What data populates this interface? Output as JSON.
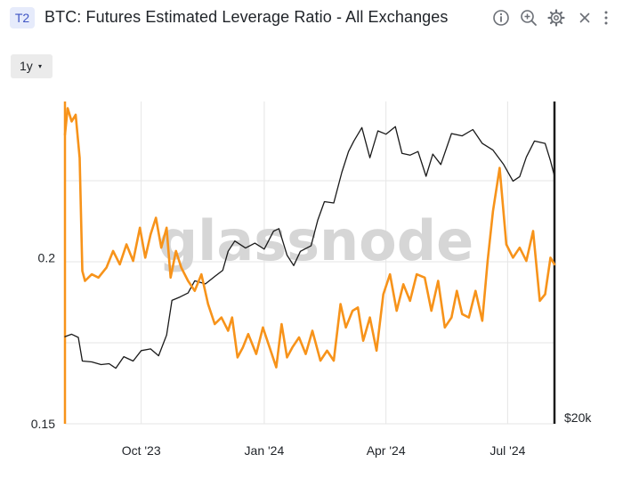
{
  "header": {
    "badge": "T2",
    "title": "BTC: Futures Estimated Leverage Ratio - All Exchanges",
    "icons": [
      "info-icon",
      "zoom-in-icon",
      "gear-icon",
      "close-icon",
      "more-vertical-icon"
    ]
  },
  "controls": {
    "range_label": "1y",
    "range_caret": "▾"
  },
  "watermark": "glassnode",
  "colors": {
    "leverage": "#f7931a",
    "price": "#1a1a1a",
    "grid": "#e6e6e6",
    "axis": "#1a1a1a",
    "badge_bg": "#e6ebfb",
    "badge_text": "#3f55c4"
  },
  "chart_data": {
    "type": "line",
    "x_tick_labels": [
      "Oct '23",
      "Jan '24",
      "Apr '24",
      "Jul '24"
    ],
    "x_ticks": [
      "2023-10-01",
      "2024-01-01",
      "2024-04-01",
      "2024-07-01"
    ],
    "xlim": [
      "2023-08-05",
      "2024-08-05"
    ],
    "y_left": {
      "ticks": [
        0.15,
        0.2
      ],
      "tick_labels": [
        "0.15",
        "0.2"
      ],
      "ylim": [
        0.15,
        0.247
      ]
    },
    "y_right": {
      "ticks": [
        20000
      ],
      "tick_labels": [
        "$20k"
      ],
      "scale": "log",
      "ylim": [
        20000,
        80000
      ]
    },
    "grid": true,
    "series": [
      {
        "key": "leverage",
        "axis": "left",
        "x": [
          "2023-08-05",
          "2023-08-07",
          "2023-08-10",
          "2023-08-13",
          "2023-08-16",
          "2023-08-18",
          "2023-08-20",
          "2023-08-25",
          "2023-08-30",
          "2023-09-05",
          "2023-09-10",
          "2023-09-15",
          "2023-09-20",
          "2023-09-25",
          "2023-09-30",
          "2023-10-04",
          "2023-10-08",
          "2023-10-12",
          "2023-10-16",
          "2023-10-20",
          "2023-10-23",
          "2023-10-27",
          "2023-10-31",
          "2023-11-05",
          "2023-11-10",
          "2023-11-15",
          "2023-11-20",
          "2023-11-25",
          "2023-11-30",
          "2023-12-05",
          "2023-12-08",
          "2023-12-12",
          "2023-12-16",
          "2023-12-20",
          "2023-12-26",
          "2023-12-31",
          "2024-01-05",
          "2024-01-10",
          "2024-01-14",
          "2024-01-18",
          "2024-01-22",
          "2024-01-27",
          "2024-02-01",
          "2024-02-06",
          "2024-02-12",
          "2024-02-17",
          "2024-02-22",
          "2024-02-27",
          "2024-03-02",
          "2024-03-07",
          "2024-03-11",
          "2024-03-15",
          "2024-03-20",
          "2024-03-25",
          "2024-03-30",
          "2024-04-04",
          "2024-04-09",
          "2024-04-14",
          "2024-04-19",
          "2024-04-24",
          "2024-04-30",
          "2024-05-05",
          "2024-05-10",
          "2024-05-15",
          "2024-05-20",
          "2024-05-24",
          "2024-05-28",
          "2024-06-02",
          "2024-06-07",
          "2024-06-12",
          "2024-06-16",
          "2024-06-20",
          "2024-06-25",
          "2024-06-30",
          "2024-07-05",
          "2024-07-10",
          "2024-07-15",
          "2024-07-20",
          "2024-07-25",
          "2024-07-29",
          "2024-08-02",
          "2024-08-05"
        ],
        "values": [
          0.237,
          0.245,
          0.241,
          0.243,
          0.23,
          0.196,
          0.193,
          0.195,
          0.194,
          0.197,
          0.202,
          0.198,
          0.204,
          0.199,
          0.209,
          0.2,
          0.207,
          0.212,
          0.203,
          0.209,
          0.194,
          0.202,
          0.197,
          0.193,
          0.19,
          0.195,
          0.186,
          0.18,
          0.182,
          0.178,
          0.182,
          0.17,
          0.173,
          0.177,
          0.171,
          0.179,
          0.173,
          0.167,
          0.18,
          0.17,
          0.173,
          0.176,
          0.171,
          0.178,
          0.169,
          0.172,
          0.169,
          0.186,
          0.179,
          0.184,
          0.185,
          0.175,
          0.182,
          0.172,
          0.189,
          0.195,
          0.184,
          0.192,
          0.187,
          0.195,
          0.194,
          0.184,
          0.193,
          0.179,
          0.182,
          0.19,
          0.183,
          0.182,
          0.19,
          0.181,
          0.199,
          0.214,
          0.227,
          0.204,
          0.2,
          0.203,
          0.199,
          0.208,
          0.187,
          0.189,
          0.2,
          0.198
        ]
      },
      {
        "key": "price",
        "axis": "right",
        "x": [
          "2023-08-05",
          "2023-08-10",
          "2023-08-15",
          "2023-08-18",
          "2023-08-25",
          "2023-09-01",
          "2023-09-07",
          "2023-09-12",
          "2023-09-18",
          "2023-09-25",
          "2023-10-01",
          "2023-10-08",
          "2023-10-14",
          "2023-10-20",
          "2023-10-24",
          "2023-10-30",
          "2023-11-05",
          "2023-11-10",
          "2023-11-18",
          "2023-11-25",
          "2023-12-01",
          "2023-12-05",
          "2023-12-10",
          "2023-12-18",
          "2023-12-25",
          "2024-01-01",
          "2024-01-08",
          "2024-01-12",
          "2024-01-18",
          "2024-01-23",
          "2024-01-28",
          "2024-02-05",
          "2024-02-10",
          "2024-02-15",
          "2024-02-22",
          "2024-02-28",
          "2024-03-04",
          "2024-03-08",
          "2024-03-14",
          "2024-03-20",
          "2024-03-26",
          "2024-04-01",
          "2024-04-08",
          "2024-04-13",
          "2024-04-19",
          "2024-04-25",
          "2024-05-01",
          "2024-05-06",
          "2024-05-12",
          "2024-05-20",
          "2024-05-28",
          "2024-06-05",
          "2024-06-12",
          "2024-06-20",
          "2024-06-28",
          "2024-07-05",
          "2024-07-10",
          "2024-07-15",
          "2024-07-21",
          "2024-07-29",
          "2024-08-02",
          "2024-08-05"
        ],
        "values": [
          29100,
          29400,
          29000,
          26200,
          26100,
          25800,
          25900,
          25400,
          26700,
          26200,
          27400,
          27600,
          26800,
          29300,
          34000,
          34500,
          35100,
          37000,
          36500,
          37700,
          38700,
          42000,
          43900,
          42600,
          43500,
          42400,
          45800,
          46300,
          41300,
          39500,
          42000,
          43000,
          48000,
          52000,
          51700,
          59000,
          64500,
          67500,
          71500,
          62800,
          70500,
          69500,
          71800,
          64000,
          63500,
          64500,
          58000,
          63800,
          61000,
          69700,
          69000,
          70900,
          66800,
          64900,
          61000,
          56800,
          57900,
          63000,
          67500,
          66800,
          62000,
          58000
        ]
      }
    ]
  }
}
